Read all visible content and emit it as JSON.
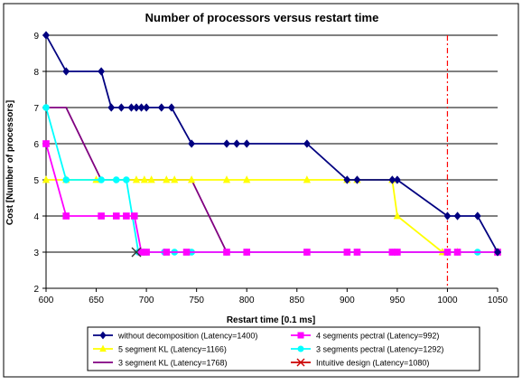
{
  "chart_data": {
    "type": "line",
    "title": "Number of processors versus restart time",
    "xlabel": "Restart time [0.1 ms]",
    "ylabel": "Cost [Number of processors]",
    "xlim": [
      600,
      1050
    ],
    "ylim": [
      2,
      9
    ],
    "xticks": [
      600,
      650,
      700,
      750,
      800,
      850,
      900,
      950,
      1000,
      1050
    ],
    "yticks": [
      2,
      3,
      4,
      5,
      6,
      7,
      8,
      9
    ],
    "grid": "horizontal",
    "legend_position": "bottom",
    "series": [
      {
        "name": "without decomposition (Latency=1400)",
        "color": "#000080",
        "marker": "diamond",
        "points": [
          [
            600,
            9
          ],
          [
            620,
            8
          ],
          [
            655,
            8
          ],
          [
            665,
            7
          ],
          [
            675,
            7
          ],
          [
            685,
            7
          ],
          [
            690,
            7
          ],
          [
            695,
            7
          ],
          [
            700,
            7
          ],
          [
            715,
            7
          ],
          [
            725,
            7
          ],
          [
            745,
            6
          ],
          [
            780,
            6
          ],
          [
            790,
            6
          ],
          [
            800,
            6
          ],
          [
            860,
            6
          ],
          [
            900,
            5
          ],
          [
            910,
            5
          ],
          [
            945,
            5
          ],
          [
            950,
            5
          ],
          [
            1000,
            4
          ],
          [
            1010,
            4
          ],
          [
            1030,
            4
          ],
          [
            1050,
            3
          ]
        ]
      },
      {
        "name": "4 segments pectral (Latency=992)",
        "color": "#FF00FF",
        "marker": "square",
        "points": [
          [
            600,
            6
          ],
          [
            620,
            4
          ],
          [
            655,
            4
          ],
          [
            670,
            4
          ],
          [
            680,
            4
          ],
          [
            688,
            4
          ],
          [
            695,
            3
          ],
          [
            700,
            3
          ],
          [
            720,
            3
          ],
          [
            740,
            3
          ],
          [
            780,
            3
          ],
          [
            800,
            3
          ],
          [
            860,
            3
          ],
          [
            900,
            3
          ],
          [
            910,
            3
          ],
          [
            945,
            3
          ],
          [
            950,
            3
          ],
          [
            1000,
            3
          ],
          [
            1010,
            3
          ],
          [
            1050,
            3
          ]
        ]
      },
      {
        "name": "5 segment KL (Latency=1166)",
        "color": "#FFFF00",
        "marker": "triangle",
        "points": [
          [
            600,
            5
          ],
          [
            620,
            5
          ],
          [
            650,
            5
          ],
          [
            690,
            5
          ],
          [
            698,
            5
          ],
          [
            705,
            5
          ],
          [
            720,
            5
          ],
          [
            728,
            5
          ],
          [
            745,
            5
          ],
          [
            780,
            5
          ],
          [
            800,
            5
          ],
          [
            860,
            5
          ],
          [
            900,
            5
          ],
          [
            910,
            5
          ],
          [
            945,
            5
          ],
          [
            950,
            4
          ],
          [
            995,
            3
          ],
          [
            1010,
            3
          ],
          [
            1050,
            3
          ]
        ]
      },
      {
        "name": "3 segments pectral (Latency=1292)",
        "color": "#00FFFF",
        "marker": "circle",
        "points": [
          [
            600,
            7
          ],
          [
            620,
            5
          ],
          [
            655,
            5
          ],
          [
            670,
            5
          ],
          [
            680,
            5
          ],
          [
            692,
            3
          ],
          [
            695,
            3
          ],
          [
            700,
            3
          ],
          [
            718,
            3
          ],
          [
            728,
            3
          ],
          [
            745,
            3
          ],
          [
            780,
            3
          ],
          [
            800,
            3
          ],
          [
            860,
            3
          ],
          [
            900,
            3
          ],
          [
            910,
            3
          ],
          [
            945,
            3
          ],
          [
            950,
            3
          ],
          [
            1000,
            3
          ],
          [
            1010,
            3
          ],
          [
            1030,
            3
          ],
          [
            1050,
            3
          ]
        ]
      },
      {
        "name": "3 segment KL (Latency=1768)",
        "color": "#800080",
        "marker": "none",
        "points": [
          [
            600,
            7
          ],
          [
            620,
            7
          ],
          [
            655,
            5
          ],
          [
            745,
            5
          ],
          [
            780,
            3
          ],
          [
            1050,
            3
          ]
        ]
      },
      {
        "name": "Intuitive design (Latency=1080)",
        "color": "#CC0000",
        "marker": "x",
        "points": [
          [
            690,
            3
          ]
        ]
      }
    ],
    "reference_line": {
      "x": 1000,
      "color": "#FF0000",
      "style": "dash-dot"
    }
  }
}
